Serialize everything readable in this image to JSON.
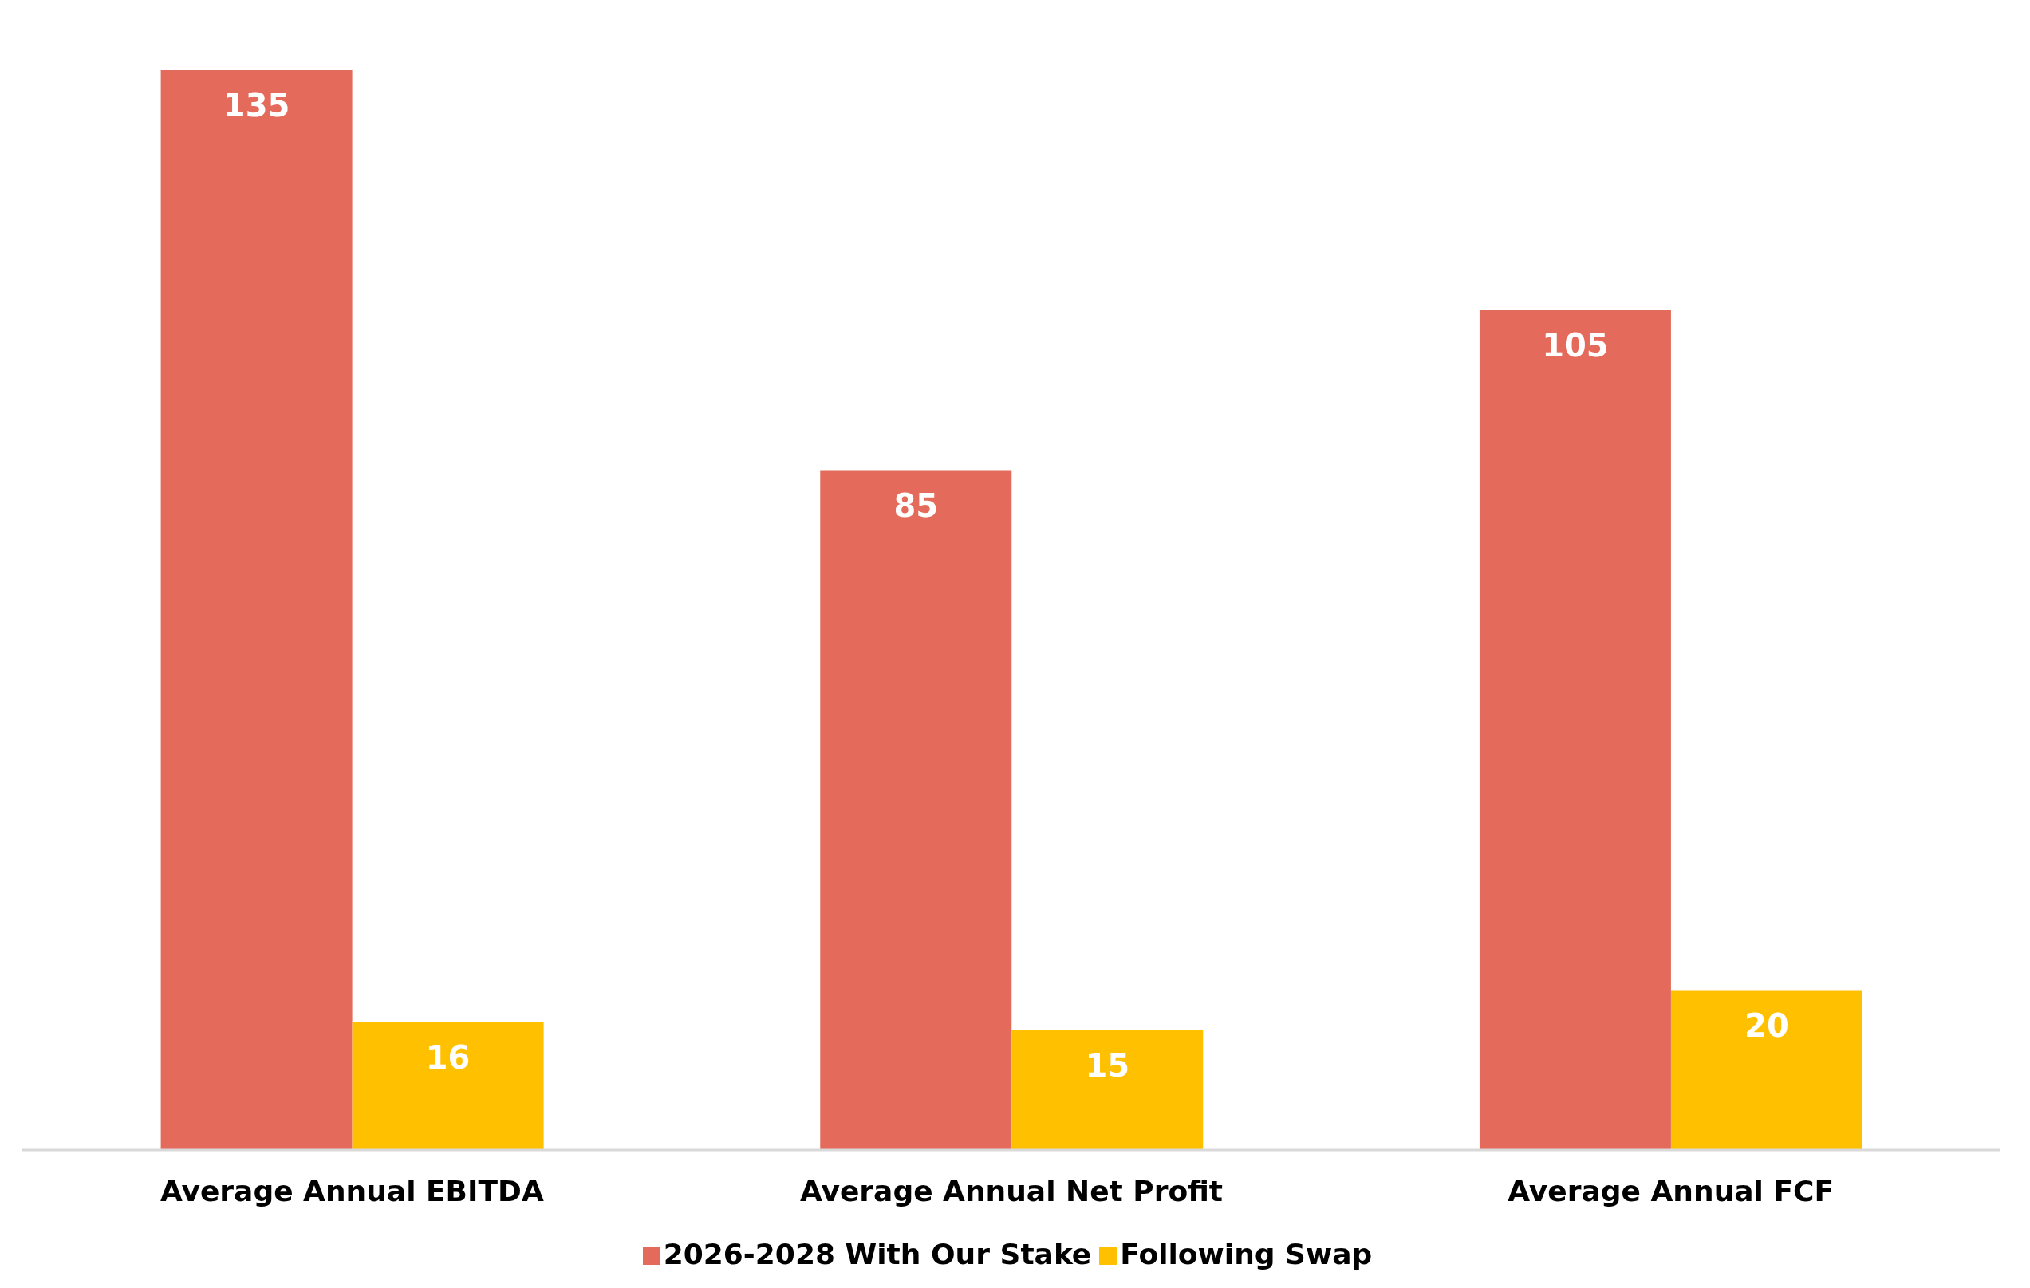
{
  "chart_data": {
    "type": "bar",
    "categories": [
      "Average Annual EBITDA",
      "Average Annual Net Profit",
      "Average Annual FCF"
    ],
    "series": [
      {
        "name": "2026-2028 With Our Stake",
        "color": "#e46b5b",
        "values": [
          135,
          85,
          105
        ]
      },
      {
        "name": "Following Swap",
        "color": "#ffc000",
        "values": [
          16,
          15,
          20
        ]
      }
    ],
    "data_labels": true,
    "legend": "bottom",
    "grid": false
  }
}
